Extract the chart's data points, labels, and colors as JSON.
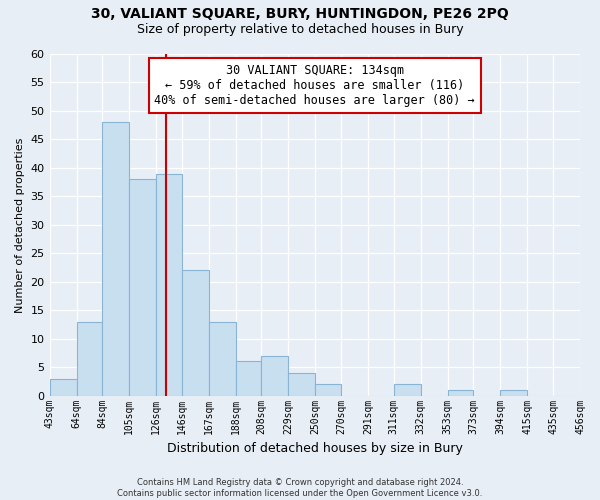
{
  "title": "30, VALIANT SQUARE, BURY, HUNTINGDON, PE26 2PQ",
  "subtitle": "Size of property relative to detached houses in Bury",
  "xlabel": "Distribution of detached houses by size in Bury",
  "ylabel": "Number of detached properties",
  "bin_labels": [
    "43sqm",
    "64sqm",
    "84sqm",
    "105sqm",
    "126sqm",
    "146sqm",
    "167sqm",
    "188sqm",
    "208sqm",
    "229sqm",
    "250sqm",
    "270sqm",
    "291sqm",
    "311sqm",
    "332sqm",
    "353sqm",
    "373sqm",
    "394sqm",
    "415sqm",
    "435sqm",
    "456sqm"
  ],
  "bar_values": [
    3,
    13,
    48,
    38,
    39,
    22,
    13,
    6,
    7,
    4,
    2,
    0,
    0,
    2,
    0,
    1,
    0,
    1,
    0,
    0
  ],
  "bar_color": "#c8dff0",
  "bar_edge_color": "#8ab4d4",
  "vline_x": 134,
  "vline_color": "#cc0000",
  "ylim": [
    0,
    60
  ],
  "yticks": [
    0,
    5,
    10,
    15,
    20,
    25,
    30,
    35,
    40,
    45,
    50,
    55,
    60
  ],
  "annotation_title": "30 VALIANT SQUARE: 134sqm",
  "annotation_line1": "← 59% of detached houses are smaller (116)",
  "annotation_line2": "40% of semi-detached houses are larger (80) →",
  "annotation_box_color": "#ffffff",
  "annotation_box_edge": "#cc0000",
  "footer_line1": "Contains HM Land Registry data © Crown copyright and database right 2024.",
  "footer_line2": "Contains public sector information licensed under the Open Government Licence v3.0.",
  "background_color": "#e8eef5",
  "grid_color": "#ffffff",
  "bin_edges": [
    43,
    64,
    84,
    105,
    126,
    146,
    167,
    188,
    208,
    229,
    250,
    270,
    291,
    311,
    332,
    353,
    373,
    394,
    415,
    435,
    456
  ]
}
